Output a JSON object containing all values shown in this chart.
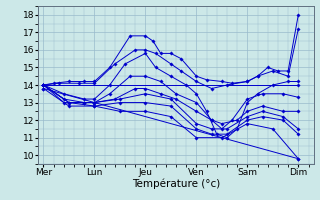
{
  "title": "Température (°c)",
  "days": [
    "Mer",
    "Lun",
    "Jeu",
    "Ven",
    "Sam",
    "Dim"
  ],
  "day_positions": [
    0,
    1,
    2,
    3,
    4,
    5
  ],
  "ylim": [
    9.5,
    18.5
  ],
  "yticks": [
    10,
    11,
    12,
    13,
    14,
    15,
    16,
    17,
    18
  ],
  "background_color": "#cce8e8",
  "grid_color": "#99bbcc",
  "line_color": "#0000cc",
  "forecast_lines": [
    [
      [
        0,
        14.0
      ],
      [
        0.2,
        14.1
      ],
      [
        0.5,
        14.2
      ],
      [
        0.8,
        14.2
      ],
      [
        1.0,
        14.2
      ],
      [
        1.3,
        15.0
      ],
      [
        1.7,
        16.8
      ],
      [
        2.0,
        16.8
      ],
      [
        2.15,
        16.5
      ],
      [
        2.3,
        15.8
      ],
      [
        2.5,
        15.8
      ],
      [
        2.7,
        15.5
      ],
      [
        3.0,
        14.5
      ],
      [
        3.2,
        14.3
      ],
      [
        3.5,
        14.2
      ],
      [
        3.7,
        14.1
      ],
      [
        4.0,
        14.2
      ],
      [
        4.2,
        14.5
      ],
      [
        4.4,
        15.0
      ],
      [
        4.6,
        14.8
      ],
      [
        4.8,
        14.8
      ],
      [
        5.0,
        18.0
      ]
    ],
    [
      [
        0,
        14.0
      ],
      [
        0.3,
        14.1
      ],
      [
        0.7,
        14.1
      ],
      [
        1.0,
        14.1
      ],
      [
        1.4,
        15.2
      ],
      [
        1.8,
        16.0
      ],
      [
        2.0,
        16.0
      ],
      [
        2.2,
        15.8
      ],
      [
        2.5,
        15.2
      ],
      [
        2.7,
        14.8
      ],
      [
        3.0,
        14.2
      ],
      [
        3.3,
        13.8
      ],
      [
        3.6,
        14.0
      ],
      [
        4.0,
        14.2
      ],
      [
        4.2,
        14.5
      ],
      [
        4.5,
        14.8
      ],
      [
        4.8,
        14.5
      ],
      [
        5.0,
        17.2
      ]
    ],
    [
      [
        0,
        14.0
      ],
      [
        0.4,
        13.5
      ],
      [
        0.8,
        13.2
      ],
      [
        1.0,
        13.2
      ],
      [
        1.3,
        14.0
      ],
      [
        1.6,
        15.2
      ],
      [
        2.0,
        15.8
      ],
      [
        2.2,
        15.0
      ],
      [
        2.5,
        14.5
      ],
      [
        2.8,
        14.0
      ],
      [
        3.0,
        13.5
      ],
      [
        3.2,
        12.5
      ],
      [
        3.4,
        11.2
      ],
      [
        3.6,
        11.0
      ],
      [
        3.8,
        11.5
      ],
      [
        4.0,
        13.0
      ],
      [
        4.2,
        13.5
      ],
      [
        4.5,
        14.0
      ],
      [
        4.8,
        14.2
      ],
      [
        5.0,
        14.2
      ]
    ],
    [
      [
        0,
        14.0
      ],
      [
        0.4,
        13.2
      ],
      [
        0.8,
        13.0
      ],
      [
        1.0,
        13.0
      ],
      [
        1.3,
        13.5
      ],
      [
        1.7,
        14.5
      ],
      [
        2.0,
        14.5
      ],
      [
        2.3,
        14.2
      ],
      [
        2.6,
        13.5
      ],
      [
        3.0,
        13.0
      ],
      [
        3.3,
        12.0
      ],
      [
        3.5,
        11.5
      ],
      [
        3.7,
        12.0
      ],
      [
        4.0,
        13.2
      ],
      [
        4.3,
        13.5
      ],
      [
        4.7,
        13.5
      ],
      [
        5.0,
        13.3
      ]
    ],
    [
      [
        0,
        14.0
      ],
      [
        0.4,
        13.0
      ],
      [
        0.8,
        13.0
      ],
      [
        1.0,
        13.0
      ],
      [
        1.4,
        13.2
      ],
      [
        1.8,
        13.8
      ],
      [
        2.0,
        13.8
      ],
      [
        2.3,
        13.5
      ],
      [
        2.6,
        13.2
      ],
      [
        3.0,
        12.5
      ],
      [
        3.3,
        12.0
      ],
      [
        3.5,
        11.8
      ],
      [
        3.8,
        12.0
      ],
      [
        4.0,
        12.5
      ],
      [
        4.3,
        12.8
      ],
      [
        4.7,
        12.5
      ],
      [
        5.0,
        12.5
      ]
    ],
    [
      [
        0,
        14.0
      ],
      [
        0.5,
        13.0
      ],
      [
        1.0,
        13.0
      ],
      [
        1.5,
        13.2
      ],
      [
        2.0,
        13.5
      ],
      [
        2.5,
        13.2
      ],
      [
        3.0,
        11.8
      ],
      [
        3.3,
        11.5
      ],
      [
        3.6,
        11.5
      ],
      [
        4.0,
        12.2
      ],
      [
        4.3,
        12.5
      ],
      [
        4.7,
        12.2
      ],
      [
        5.0,
        11.5
      ]
    ],
    [
      [
        0,
        14.0
      ],
      [
        0.5,
        13.0
      ],
      [
        1.0,
        12.8
      ],
      [
        1.5,
        13.0
      ],
      [
        2.0,
        13.0
      ],
      [
        2.5,
        12.8
      ],
      [
        3.0,
        11.5
      ],
      [
        3.3,
        11.2
      ],
      [
        3.6,
        11.2
      ],
      [
        4.0,
        12.0
      ],
      [
        4.3,
        12.2
      ],
      [
        4.7,
        12.0
      ],
      [
        5.0,
        11.2
      ]
    ],
    [
      [
        0,
        13.8
      ],
      [
        0.5,
        12.8
      ],
      [
        1.0,
        12.8
      ],
      [
        1.5,
        12.5
      ],
      [
        2.0,
        12.5
      ],
      [
        2.5,
        12.2
      ],
      [
        3.0,
        11.0
      ],
      [
        3.5,
        11.0
      ],
      [
        4.0,
        11.8
      ],
      [
        4.5,
        11.5
      ],
      [
        5.0,
        9.8
      ]
    ],
    [
      [
        0,
        14.0
      ],
      [
        5.0,
        14.0
      ]
    ],
    [
      [
        0,
        13.8
      ],
      [
        5.0,
        9.8
      ]
    ]
  ]
}
